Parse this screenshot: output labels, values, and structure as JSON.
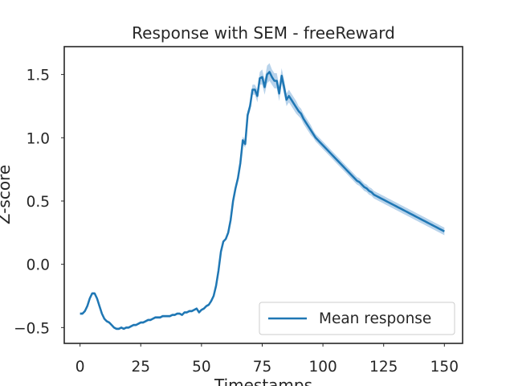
{
  "chart_data": {
    "type": "line",
    "title": "Response with SEM - freeReward",
    "xlabel": "Timestamps",
    "ylabel": "Z-score",
    "xlim": [
      -6.5,
      157.5
    ],
    "ylim": [
      -0.625,
      1.72
    ],
    "xticks": [
      0,
      25,
      50,
      75,
      100,
      125,
      150
    ],
    "yticks": [
      -0.5,
      0.0,
      0.5,
      1.0,
      1.5
    ],
    "xtick_labels": [
      "0",
      "25",
      "50",
      "75",
      "100",
      "125",
      "150"
    ],
    "ytick_labels": [
      "−0.5",
      "0.0",
      "0.5",
      "1.0",
      "1.5"
    ],
    "grid": false,
    "legend": {
      "position": "lower-right",
      "entries": [
        "Mean response"
      ]
    },
    "colors": {
      "line": "#1f77b4",
      "band": "#a6c8e6",
      "frame": "#262626"
    },
    "series": [
      {
        "name": "Mean response",
        "x": [
          0,
          1,
          2,
          3,
          4,
          5,
          6,
          7,
          8,
          9,
          10,
          11,
          12,
          13,
          14,
          15,
          16,
          17,
          18,
          19,
          20,
          21,
          22,
          23,
          24,
          25,
          26,
          27,
          28,
          29,
          30,
          31,
          32,
          33,
          34,
          35,
          36,
          37,
          38,
          39,
          40,
          41,
          42,
          43,
          44,
          45,
          46,
          47,
          48,
          49,
          50,
          51,
          52,
          53,
          54,
          55,
          56,
          57,
          58,
          59,
          60,
          61,
          62,
          63,
          64,
          65,
          66,
          67,
          68,
          69,
          70,
          71,
          72,
          73,
          74,
          75,
          76,
          77,
          78,
          79,
          80,
          81,
          82,
          83,
          84,
          85,
          86,
          87,
          88,
          89,
          90,
          91,
          92,
          93,
          94,
          95,
          96,
          97,
          98,
          99,
          100,
          101,
          102,
          103,
          104,
          105,
          106,
          107,
          108,
          109,
          110,
          111,
          112,
          113,
          114,
          115,
          116,
          117,
          118,
          119,
          120,
          121,
          122,
          123,
          124,
          125,
          126,
          127,
          128,
          129,
          130,
          131,
          132,
          133,
          134,
          135,
          136,
          137,
          138,
          139,
          140,
          141,
          142,
          143,
          144,
          145,
          146,
          147,
          148,
          149,
          150
        ],
        "values": [
          -0.39,
          -0.39,
          -0.37,
          -0.33,
          -0.27,
          -0.23,
          -0.23,
          -0.27,
          -0.33,
          -0.39,
          -0.43,
          -0.45,
          -0.46,
          -0.48,
          -0.5,
          -0.51,
          -0.51,
          -0.5,
          -0.51,
          -0.5,
          -0.5,
          -0.49,
          -0.48,
          -0.48,
          -0.47,
          -0.46,
          -0.46,
          -0.45,
          -0.44,
          -0.44,
          -0.43,
          -0.42,
          -0.42,
          -0.42,
          -0.41,
          -0.41,
          -0.41,
          -0.41,
          -0.4,
          -0.4,
          -0.39,
          -0.39,
          -0.4,
          -0.38,
          -0.38,
          -0.37,
          -0.37,
          -0.36,
          -0.35,
          -0.38,
          -0.36,
          -0.35,
          -0.33,
          -0.32,
          -0.29,
          -0.25,
          -0.17,
          -0.05,
          0.1,
          0.18,
          0.2,
          0.25,
          0.35,
          0.5,
          0.6,
          0.68,
          0.8,
          0.98,
          0.95,
          1.18,
          1.25,
          1.38,
          1.38,
          1.33,
          1.47,
          1.48,
          1.4,
          1.5,
          1.52,
          1.48,
          1.45,
          1.45,
          1.35,
          1.49,
          1.4,
          1.3,
          1.33,
          1.3,
          1.27,
          1.24,
          1.21,
          1.19,
          1.15,
          1.12,
          1.09,
          1.06,
          1.03,
          1.0,
          0.98,
          0.96,
          0.94,
          0.92,
          0.9,
          0.88,
          0.86,
          0.84,
          0.82,
          0.8,
          0.78,
          0.76,
          0.74,
          0.72,
          0.7,
          0.68,
          0.66,
          0.65,
          0.63,
          0.61,
          0.6,
          0.58,
          0.57,
          0.55,
          0.54,
          0.53,
          0.52,
          0.51,
          0.5,
          0.49,
          0.48,
          0.47,
          0.46,
          0.45,
          0.44,
          0.43,
          0.42,
          0.41,
          0.4,
          0.39,
          0.38,
          0.37,
          0.36,
          0.35,
          0.34,
          0.33,
          0.32,
          0.31,
          0.3,
          0.29,
          0.28,
          0.27,
          0.26
        ],
        "sem": [
          0.01,
          0.01,
          0.01,
          0.01,
          0.01,
          0.01,
          0.01,
          0.01,
          0.01,
          0.01,
          0.01,
          0.01,
          0.01,
          0.01,
          0.01,
          0.01,
          0.01,
          0.01,
          0.01,
          0.01,
          0.01,
          0.01,
          0.01,
          0.01,
          0.01,
          0.01,
          0.01,
          0.01,
          0.01,
          0.01,
          0.01,
          0.01,
          0.01,
          0.01,
          0.01,
          0.01,
          0.01,
          0.01,
          0.01,
          0.01,
          0.01,
          0.01,
          0.01,
          0.01,
          0.01,
          0.01,
          0.01,
          0.01,
          0.01,
          0.01,
          0.01,
          0.01,
          0.01,
          0.01,
          0.01,
          0.01,
          0.01,
          0.01,
          0.01,
          0.01,
          0.01,
          0.01,
          0.02,
          0.02,
          0.02,
          0.02,
          0.03,
          0.03,
          0.03,
          0.03,
          0.04,
          0.04,
          0.04,
          0.05,
          0.05,
          0.06,
          0.06,
          0.07,
          0.07,
          0.06,
          0.06,
          0.06,
          0.06,
          0.06,
          0.06,
          0.05,
          0.05,
          0.05,
          0.05,
          0.05,
          0.04,
          0.04,
          0.04,
          0.04,
          0.04,
          0.04,
          0.03,
          0.03,
          0.03,
          0.03,
          0.03,
          0.03,
          0.03,
          0.03,
          0.03,
          0.03,
          0.03,
          0.03,
          0.03,
          0.03,
          0.03,
          0.03,
          0.03,
          0.03,
          0.03,
          0.03,
          0.03,
          0.03,
          0.03,
          0.03,
          0.03,
          0.03,
          0.03,
          0.03,
          0.03,
          0.03,
          0.03,
          0.03,
          0.03,
          0.03,
          0.03,
          0.03,
          0.03,
          0.03,
          0.03,
          0.03,
          0.03,
          0.03,
          0.03,
          0.03,
          0.03,
          0.03,
          0.03,
          0.03,
          0.03,
          0.03,
          0.03,
          0.03,
          0.03,
          0.03,
          0.03
        ]
      }
    ]
  }
}
